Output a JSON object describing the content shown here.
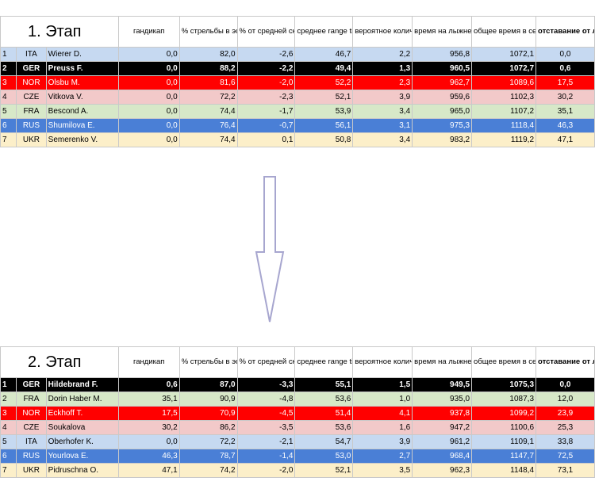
{
  "columns": [
    "гандикап",
    "% стрельбы в эстафетах в сезоне",
    "% от средней скорости в сезоне",
    "среднее range time",
    "вероятное количество доп. патронов",
    "время на лыжне в секундах",
    "общее время в секундах с гандикапом",
    "отставание от лидера"
  ],
  "chart_data": [
    {
      "type": "table",
      "title": "1. Этап",
      "rows": [
        {
          "pos": "1",
          "country": "ITA",
          "name": "Wierer D.",
          "handicap": "0,0",
          "shooting": "82,0",
          "speed": "-2,6",
          "range": "46,7",
          "rounds": "2,2",
          "ski": "956,8",
          "total": "1072,1",
          "gap": "0,0"
        },
        {
          "pos": "2",
          "country": "GER",
          "name": "Preuss F.",
          "handicap": "0,0",
          "shooting": "88,2",
          "speed": "-2,2",
          "range": "49,4",
          "rounds": "1,3",
          "ski": "960,5",
          "total": "1072,7",
          "gap": "0,6"
        },
        {
          "pos": "3",
          "country": "NOR",
          "name": "Olsbu M.",
          "handicap": "0,0",
          "shooting": "81,6",
          "speed": "-2,0",
          "range": "52,2",
          "rounds": "2,3",
          "ski": "962,7",
          "total": "1089,6",
          "gap": "17,5"
        },
        {
          "pos": "4",
          "country": "CZE",
          "name": "Vitkova V.",
          "handicap": "0,0",
          "shooting": "72,2",
          "speed": "-2,3",
          "range": "52,1",
          "rounds": "3,9",
          "ski": "959,6",
          "total": "1102,3",
          "gap": "30,2"
        },
        {
          "pos": "5",
          "country": "FRA",
          "name": "Bescond A.",
          "handicap": "0,0",
          "shooting": "74,4",
          "speed": "-1,7",
          "range": "53,9",
          "rounds": "3,4",
          "ski": "965,0",
          "total": "1107,2",
          "gap": "35,1"
        },
        {
          "pos": "6",
          "country": "RUS",
          "name": "Shumilova E.",
          "handicap": "0,0",
          "shooting": "76,4",
          "speed": "-0,7",
          "range": "56,1",
          "rounds": "3,1",
          "ski": "975,3",
          "total": "1118,4",
          "gap": "46,3"
        },
        {
          "pos": "7",
          "country": "UKR",
          "name": "Semerenko V.",
          "handicap": "0,0",
          "shooting": "74,4",
          "speed": "0,1",
          "range": "50,8",
          "rounds": "3,4",
          "ski": "983,2",
          "total": "1119,2",
          "gap": "47,1"
        }
      ]
    },
    {
      "type": "table",
      "title": "2. Этап",
      "rows": [
        {
          "pos": "1",
          "country": "GER",
          "name": "Hildebrand F.",
          "handicap": "0,6",
          "shooting": "87,0",
          "speed": "-3,3",
          "range": "55,1",
          "rounds": "1,5",
          "ski": "949,5",
          "total": "1075,3",
          "gap": "0,0"
        },
        {
          "pos": "2",
          "country": "FRA",
          "name": "Dorin Haber M.",
          "handicap": "35,1",
          "shooting": "90,9",
          "speed": "-4,8",
          "range": "53,6",
          "rounds": "1,0",
          "ski": "935,0",
          "total": "1087,3",
          "gap": "12,0"
        },
        {
          "pos": "3",
          "country": "NOR",
          "name": "Eckhoff T.",
          "handicap": "17,5",
          "shooting": "70,9",
          "speed": "-4,5",
          "range": "51,4",
          "rounds": "4,1",
          "ski": "937,8",
          "total": "1099,2",
          "gap": "23,9"
        },
        {
          "pos": "4",
          "country": "CZE",
          "name": "Soukalova",
          "handicap": "30,2",
          "shooting": "86,2",
          "speed": "-3,5",
          "range": "53,6",
          "rounds": "1,6",
          "ski": "947,2",
          "total": "1100,6",
          "gap": "25,3"
        },
        {
          "pos": "5",
          "country": "ITA",
          "name": "Oberhofer K.",
          "handicap": "0,0",
          "shooting": "72,2",
          "speed": "-2,1",
          "range": "54,7",
          "rounds": "3,9",
          "ski": "961,2",
          "total": "1109,1",
          "gap": "33,8"
        },
        {
          "pos": "6",
          "country": "RUS",
          "name": "Yourlova E.",
          "handicap": "46,3",
          "shooting": "78,7",
          "speed": "-1,4",
          "range": "53,0",
          "rounds": "2,7",
          "ski": "968,4",
          "total": "1147,7",
          "gap": "72,5"
        },
        {
          "pos": "7",
          "country": "UKR",
          "name": "Pidruschna O.",
          "handicap": "47,1",
          "shooting": "74,2",
          "speed": "-2,0",
          "range": "52,1",
          "rounds": "3,5",
          "ski": "962,3",
          "total": "1148,4",
          "gap": "73,1"
        }
      ]
    }
  ]
}
